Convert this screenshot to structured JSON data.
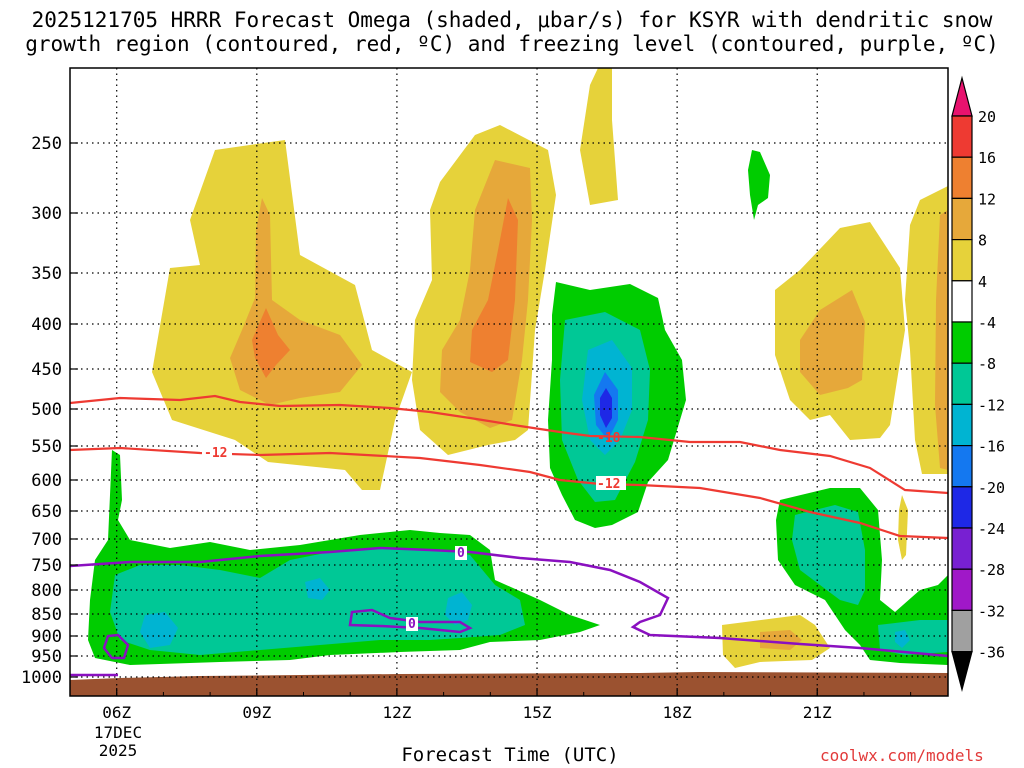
{
  "chart_data": {
    "type": "heatmap",
    "title_line1": "2025121705 HRRR Forecast Omega (shaded, μbar/s) for KSYR with dendritic snow",
    "title_line2": "growth region (contoured, red, ºC) and freezing level (contoured, purple, ºC)",
    "xlabel": "Forecast Time (UTC)",
    "x_ticks": [
      "06Z",
      "09Z",
      "12Z",
      "15Z",
      "18Z",
      "21Z"
    ],
    "x_date_line1": "17DEC",
    "x_date_line2": "2025",
    "x_range_hours": [
      5,
      23.8
    ],
    "y_ticks": [
      "250",
      "300",
      "350",
      "400",
      "450",
      "500",
      "550",
      "600",
      "650",
      "700",
      "750",
      "800",
      "850",
      "900",
      "950",
      "1000"
    ],
    "y_range_mb": [
      200,
      1040
    ],
    "colorbar": {
      "labels": [
        "20",
        "16",
        "12",
        "8",
        "4",
        "-4",
        "-8",
        "-12",
        "-16",
        "-20",
        "-24",
        "-28",
        "-32",
        "-36"
      ],
      "colors": [
        "#e8126e",
        "#ee3a32",
        "#ee8030",
        "#e6a83a",
        "#e6d23a",
        "#ffffff",
        "#00cc00",
        "#00c896",
        "#00b4d2",
        "#1478f0",
        "#1e28e6",
        "#7820d2",
        "#a018c8",
        "#a0a0a0",
        "#000000"
      ]
    },
    "contour_labels": {
      "dgz_upper": "-18",
      "dgz_lower": "-12",
      "dgz_lower_left": "-12",
      "freezing_1": "0",
      "freezing_2": "0"
    },
    "colors": {
      "ground": "#9b5230",
      "dgz": "#ee3a32",
      "freezing": "#8a10c0"
    },
    "credit": "coolwx.com/models"
  }
}
